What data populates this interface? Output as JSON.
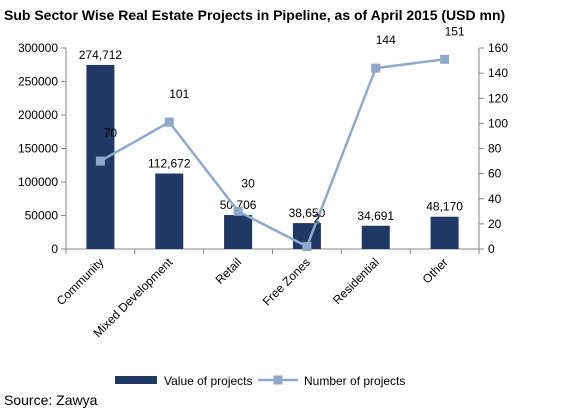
{
  "chart_data": {
    "type": "bar",
    "title": "Sub Sector Wise Real Estate Projects in Pipeline, as of April 2015 (USD mn)",
    "categories": [
      "Community",
      "Mixed Development",
      "Retail",
      "Free Zones",
      "Residential",
      "Other"
    ],
    "series": [
      {
        "name": "Value of projects",
        "type": "bar",
        "axis": "left",
        "color": "#1f3864",
        "values": [
          274712,
          112672,
          50706,
          38650,
          34691,
          48170
        ],
        "labels": [
          "274,712",
          "112,672",
          "50,706",
          "38,650",
          "34,691",
          "48,170"
        ]
      },
      {
        "name": "Number of projects",
        "type": "line",
        "axis": "right",
        "color": "#8ea9cc",
        "marker": "square",
        "values": [
          70,
          101,
          30,
          2,
          144,
          151
        ],
        "labels": [
          "70",
          "101",
          "30",
          "2",
          "144",
          "151"
        ]
      }
    ],
    "y_left": {
      "range": [
        0,
        300000
      ],
      "ticks": [
        0,
        50000,
        100000,
        150000,
        200000,
        250000,
        300000
      ],
      "tick_labels": [
        "0",
        "50000",
        "100000",
        "150000",
        "200000",
        "250000",
        "300000"
      ]
    },
    "y_right": {
      "range": [
        0,
        160
      ],
      "ticks": [
        0,
        20,
        40,
        60,
        80,
        100,
        120,
        140,
        160
      ],
      "tick_labels": [
        "0",
        "20",
        "40",
        "60",
        "80",
        "100",
        "120",
        "140",
        "160"
      ]
    },
    "grid": false,
    "legend": "bottom"
  },
  "source": "Source: Zawya"
}
